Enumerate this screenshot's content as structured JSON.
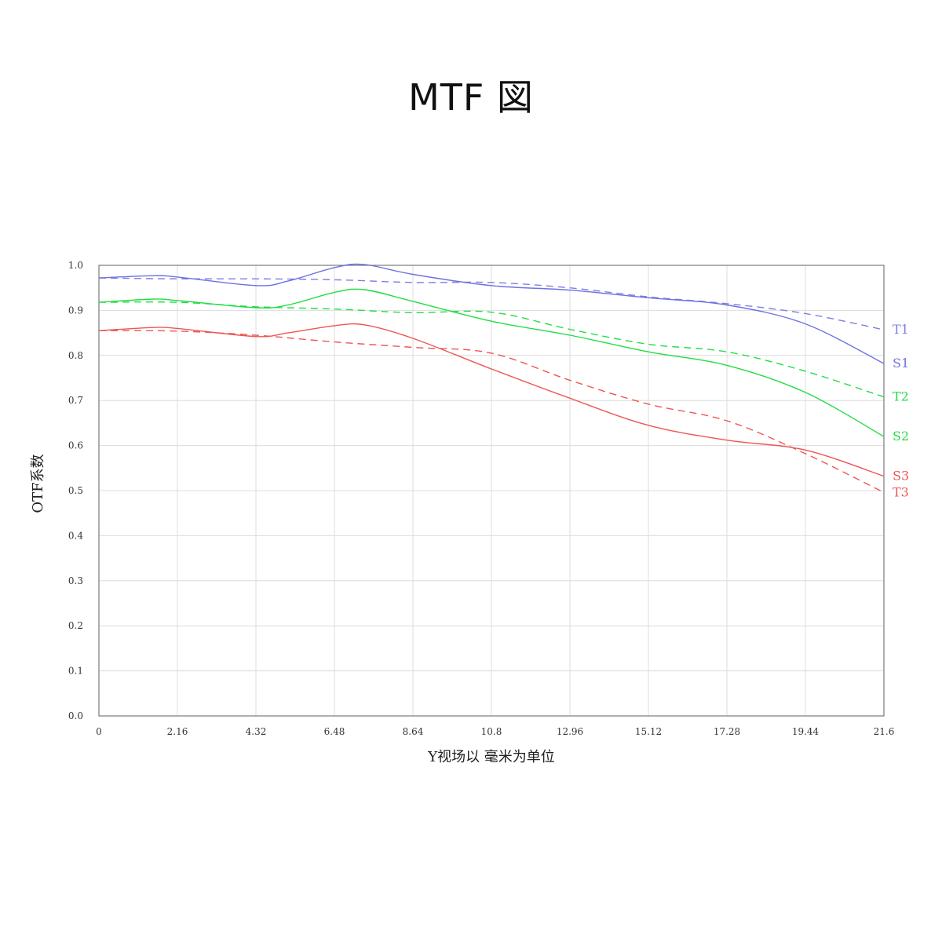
{
  "chart_data": {
    "type": "line",
    "title": "MTF 図",
    "xlabel": "Y视场以 毫米为单位",
    "ylabel": "OTF系数",
    "xlim": [
      0,
      21.6
    ],
    "ylim": [
      0,
      1.0
    ],
    "grid": true,
    "x_ticks": [
      "0",
      "2.16",
      "4.32",
      "6.48",
      "8.64",
      "10.8",
      "12.96",
      "15.12",
      "17.28",
      "19.44",
      "21.6"
    ],
    "y_ticks": [
      "0.0",
      "0.1",
      "0.2",
      "0.3",
      "0.4",
      "0.5",
      "0.6",
      "0.7",
      "0.8",
      "0.9",
      "1.0"
    ],
    "x": [
      0,
      2.16,
      4.32,
      6.48,
      8.64,
      10.8,
      12.96,
      15.12,
      17.28,
      19.44,
      21.6
    ],
    "series": [
      {
        "name": "T1",
        "color": "#7b7fe6",
        "style": "dashed",
        "x": [
          0,
          2.16,
          4.32,
          6.48,
          8.64,
          10.8,
          12.96,
          15.12,
          17.28,
          19.44,
          21.6
        ],
        "values": [
          0.972,
          0.97,
          0.97,
          0.968,
          0.962,
          0.962,
          0.95,
          0.93,
          0.915,
          0.893,
          0.857
        ]
      },
      {
        "name": "S1",
        "color": "#6e72e0",
        "style": "solid",
        "x": [
          0,
          1.5,
          2.16,
          4.32,
          5.2,
          6.48,
          7.3,
          8.64,
          10.8,
          12.96,
          15.12,
          17.28,
          19.44,
          21.6
        ],
        "values": [
          0.972,
          0.977,
          0.974,
          0.955,
          0.965,
          0.995,
          1.002,
          0.98,
          0.955,
          0.945,
          0.928,
          0.912,
          0.87,
          0.782
        ]
      },
      {
        "name": "T2",
        "color": "#22dd44",
        "style": "dashed",
        "x": [
          0,
          2.16,
          4.32,
          6.48,
          8.64,
          10.8,
          12.96,
          15.12,
          17.28,
          19.44,
          21.6
        ],
        "values": [
          0.918,
          0.918,
          0.908,
          0.903,
          0.895,
          0.896,
          0.858,
          0.825,
          0.808,
          0.765,
          0.708
        ]
      },
      {
        "name": "S2",
        "color": "#22dd44",
        "style": "solid",
        "x": [
          0,
          1.5,
          2.16,
          4.32,
          5.2,
          6.48,
          7.3,
          8.64,
          10.8,
          12.96,
          15.12,
          17.28,
          19.44,
          21.6
        ],
        "values": [
          0.918,
          0.925,
          0.922,
          0.906,
          0.912,
          0.94,
          0.946,
          0.92,
          0.876,
          0.845,
          0.808,
          0.778,
          0.718,
          0.62
        ]
      },
      {
        "name": "T3",
        "color": "#ee5555",
        "style": "dashed",
        "x": [
          0,
          2.16,
          4.32,
          6.48,
          8.64,
          10.8,
          12.96,
          15.12,
          17.28,
          19.44,
          21.6
        ],
        "values": [
          0.855,
          0.854,
          0.845,
          0.83,
          0.818,
          0.805,
          0.745,
          0.692,
          0.655,
          0.582,
          0.496
        ]
      },
      {
        "name": "S3",
        "color": "#ee5555",
        "style": "solid",
        "x": [
          0,
          1.5,
          2.16,
          4.32,
          5.2,
          6.48,
          7.3,
          8.64,
          10.8,
          12.96,
          15.12,
          17.28,
          19.44,
          21.6
        ],
        "values": [
          0.855,
          0.862,
          0.86,
          0.842,
          0.85,
          0.866,
          0.868,
          0.838,
          0.77,
          0.705,
          0.645,
          0.612,
          0.59,
          0.532
        ]
      }
    ]
  }
}
